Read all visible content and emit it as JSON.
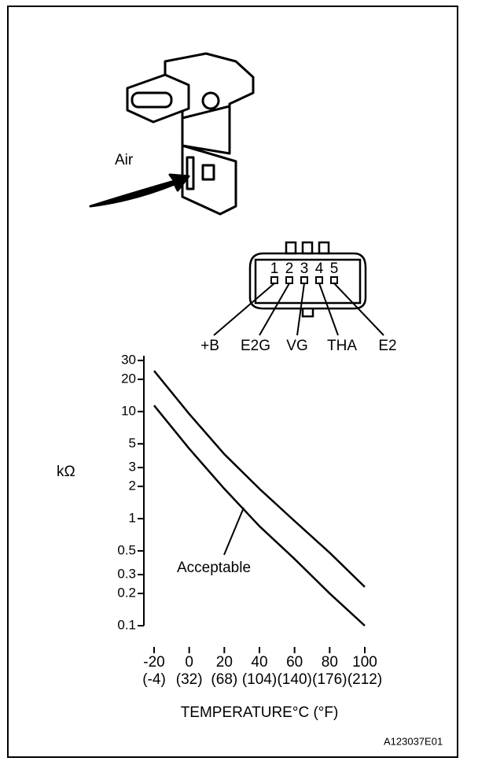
{
  "illustration": {
    "air_label": "Air"
  },
  "connector": {
    "pins": [
      "1",
      "2",
      "3",
      "4",
      "5"
    ],
    "terminals": [
      "+B",
      "E2G",
      "VG",
      "THA",
      "E2"
    ]
  },
  "figure_code": "A123037E01",
  "chart_data": {
    "type": "line",
    "ylabel": "kΩ",
    "xlabel": "TEMPERATURE°C (°F)",
    "annotation": "Acceptable",
    "x": [
      -20,
      0,
      20,
      40,
      60,
      80,
      100
    ],
    "series": [
      {
        "color": "#000000",
        "values": [
          24,
          9.5,
          4.0,
          1.9,
          0.95,
          0.48,
          0.23
        ]
      },
      {
        "color": "#000000",
        "values": [
          11.4,
          4.5,
          1.9,
          0.85,
          0.42,
          0.2,
          0.1
        ]
      }
    ],
    "log_y": true,
    "xlim": [
      -20,
      100
    ],
    "xticks": [
      -20,
      0,
      20,
      40,
      60,
      80,
      100
    ],
    "x2ticks": [
      {
        "value": -20,
        "label": "(-4)"
      },
      {
        "value": 0,
        "label": "(32)"
      },
      {
        "value": 20,
        "label": "(68)"
      },
      {
        "value": 40,
        "label": "(104)"
      },
      {
        "value": 60,
        "label": "(140)"
      },
      {
        "value": 80,
        "label": "(176)"
      },
      {
        "value": 100,
        "label": "(212)"
      }
    ],
    "ylim": [
      0.1,
      30
    ],
    "yticks": [
      0.1,
      0.2,
      0.3,
      0.5,
      1,
      2,
      3,
      5,
      10,
      20,
      30
    ]
  }
}
